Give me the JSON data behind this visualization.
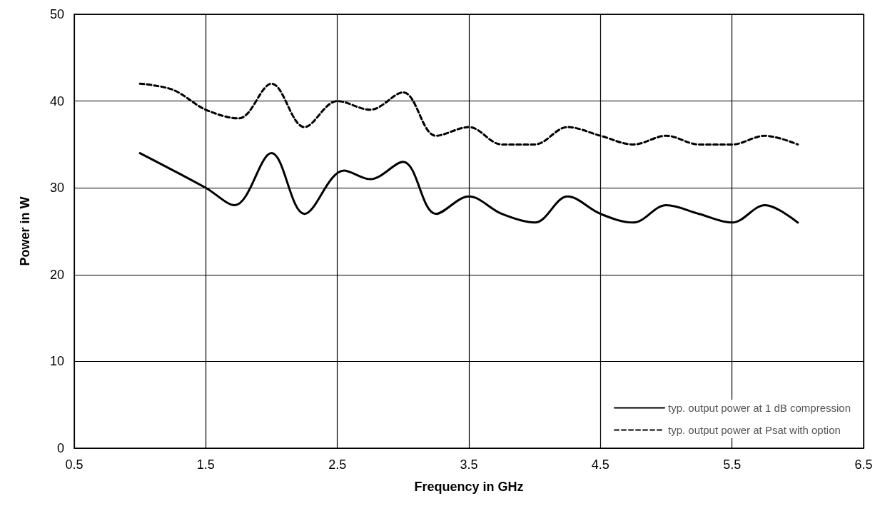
{
  "chart_data": {
    "type": "line",
    "xlabel": "Frequency in GHz",
    "ylabel": "Power in W",
    "xlim": [
      0.5,
      6.5
    ],
    "xticks": [
      0.5,
      1.5,
      2.5,
      3.5,
      4.5,
      5.5,
      6.5
    ],
    "ylim": [
      0,
      50
    ],
    "yticks": [
      0,
      10,
      20,
      30,
      40,
      50
    ],
    "grid": true,
    "legend": "bottom right",
    "marker": "none",
    "series": [
      {
        "name": "typ. output power at 1 dB compression",
        "color": "#000000",
        "line_style": "solid",
        "x": [
          1,
          1.5,
          1.72,
          2,
          2.25,
          2.55,
          2.75,
          3,
          3.25,
          3.5,
          3.75,
          4,
          4.25,
          4.5,
          4.75,
          5,
          5.25,
          5.5,
          5.75,
          6
        ],
        "values": [
          34,
          30,
          28,
          34,
          27,
          32,
          31,
          33,
          27,
          29,
          27,
          26,
          29,
          27,
          26,
          28,
          27,
          26,
          28,
          26
        ]
      },
      {
        "name": "typ. output power at Psat with option",
        "color": "#000000",
        "line_style": "dashed",
        "x": [
          1,
          1.25,
          1.5,
          1.75,
          2,
          2.25,
          2.5,
          2.75,
          3,
          3.25,
          3.5,
          3.75,
          4,
          4.25,
          4.5,
          4.75,
          5,
          5.25,
          5.5,
          5.75,
          6
        ],
        "values": [
          42,
          41.3,
          39,
          38,
          42,
          37,
          40,
          39,
          41,
          36,
          37,
          35,
          35,
          37,
          36,
          35,
          36,
          35,
          35,
          36,
          35
        ]
      }
    ]
  }
}
